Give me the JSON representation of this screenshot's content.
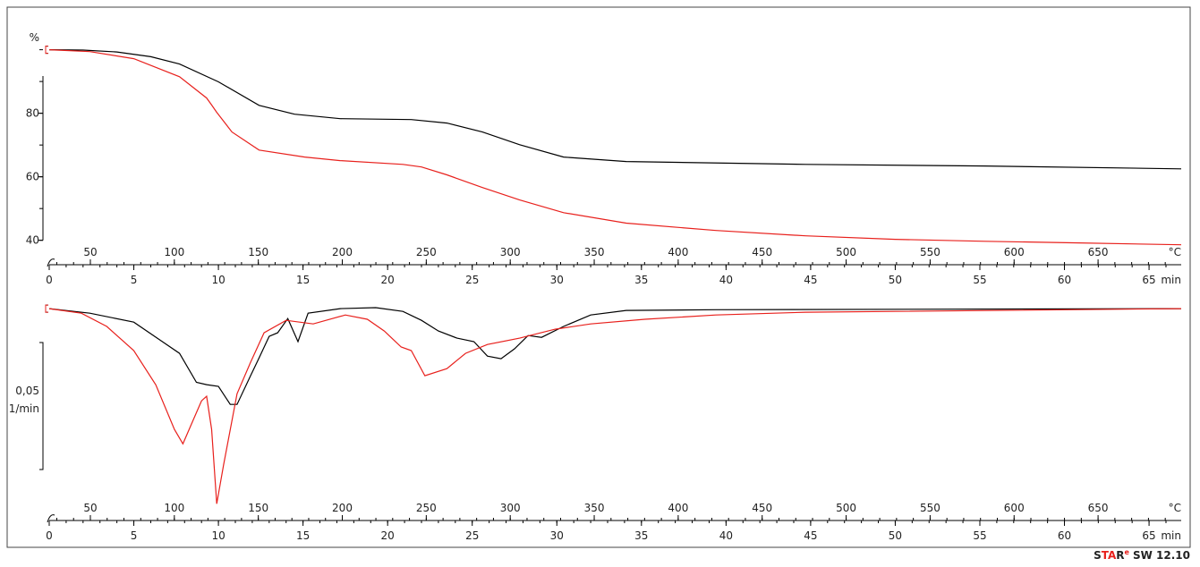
{
  "chart_data": [
    {
      "type": "line",
      "ylabel": "%",
      "xlabel": "min",
      "x2label": "°C",
      "xlim": [
        0,
        66.9
      ],
      "xticks": [
        0,
        5,
        10,
        15,
        20,
        25,
        30,
        35,
        40,
        45,
        50,
        55,
        60,
        65
      ],
      "x2lim": [
        25.5,
        699.5
      ],
      "x2ticks": [
        50,
        100,
        150,
        200,
        250,
        300,
        350,
        400,
        450,
        500,
        550,
        600,
        650
      ],
      "ylim": [
        34,
        112
      ],
      "yticks": [
        40,
        60,
        80
      ],
      "series": [
        {
          "color": "#000000",
          "x": [
            0,
            2,
            4,
            6,
            7.7,
            10,
            12.4,
            14.5,
            17.2,
            21.4,
            23.5,
            25.6,
            27.8,
            30.4,
            34.1,
            44.7,
            55.3,
            66.9
          ],
          "values": [
            100,
            99.9,
            99.3,
            97.8,
            95.5,
            89.9,
            82.5,
            79.7,
            78.3,
            78,
            76.9,
            74.1,
            70.1,
            66.2,
            64.8,
            63.9,
            63.4,
            62.5
          ]
        },
        {
          "color": "#e8201c",
          "x": [
            0,
            2.4,
            5,
            7.7,
            9.3,
            9.6,
            9.9,
            10.8,
            12.4,
            15.1,
            17.2,
            20.9,
            22,
            23.5,
            25.6,
            27.8,
            30.4,
            34.1,
            39.4,
            44.7,
            50,
            55.3,
            60.5,
            66.9
          ],
          "values": [
            100,
            99.4,
            97.2,
            91.5,
            84.8,
            82.6,
            80.3,
            74.1,
            68.4,
            66.2,
            65.1,
            63.9,
            63.1,
            60.6,
            56.6,
            52.7,
            48.7,
            45.4,
            43.1,
            41.4,
            40.3,
            39.7,
            39.2,
            38.6
          ]
        }
      ]
    },
    {
      "type": "line",
      "xlabel": "min",
      "x2label": "°C",
      "xlim": [
        0,
        66.9
      ],
      "xticks": [
        0,
        5,
        10,
        15,
        20,
        25,
        30,
        35,
        40,
        45,
        50,
        55,
        60,
        65
      ],
      "x2lim": [
        25.5,
        699.5
      ],
      "x2ticks": [
        50,
        100,
        150,
        200,
        250,
        300,
        350,
        400,
        450,
        500,
        550,
        600,
        650
      ],
      "ylim": [
        -0.0862,
        0.0018
      ],
      "ylabel": "1/min",
      "scale_bar": {
        "value": 0.05,
        "label": "0,05"
      },
      "series": [
        {
          "color": "#000000",
          "x": [
            0,
            2.4,
            5,
            7.7,
            8.7,
            9.3,
            10,
            10.7,
            11.1,
            11.9,
            12.4,
            13,
            13.5,
            14.1,
            14.7,
            15.3,
            17.2,
            19.3,
            20.9,
            22,
            23,
            24.1,
            25.1,
            25.9,
            26.7,
            27.5,
            28.3,
            29.1,
            30.4,
            32,
            34.1,
            39.4,
            66.9
          ],
          "values": [
            0,
            -0.0018,
            -0.0053,
            -0.0176,
            -0.029,
            -0.0299,
            -0.0306,
            -0.0377,
            -0.0377,
            -0.0264,
            -0.0194,
            -0.0109,
            -0.0095,
            -0.0039,
            -0.013,
            -0.0018,
            0,
            0.0004,
            -0.0011,
            -0.0046,
            -0.0088,
            -0.0116,
            -0.013,
            -0.0187,
            -0.0197,
            -0.0158,
            -0.0106,
            -0.0113,
            -0.007,
            -0.0025,
            -0.0007,
            -0.0004,
            0
          ]
        },
        {
          "color": "#e8201c",
          "x": [
            0,
            1.9,
            3.4,
            5,
            6.3,
            7.4,
            7.9,
            8.5,
            9,
            9.3,
            9.6,
            9.9,
            10.3,
            11.1,
            11.9,
            12.7,
            14,
            15.6,
            17.5,
            18.8,
            19.8,
            20.8,
            21.4,
            22.2,
            23.5,
            24.6,
            25.9,
            27.8,
            29.9,
            32,
            35.2,
            39.4,
            44.7,
            50,
            66.9
          ],
          "values": [
            0,
            -0.0018,
            -0.007,
            -0.0165,
            -0.03,
            -0.0475,
            -0.0532,
            -0.044,
            -0.0363,
            -0.0345,
            -0.0475,
            -0.0768,
            -0.0616,
            -0.0335,
            -0.0211,
            -0.0095,
            -0.0046,
            -0.006,
            -0.0025,
            -0.0042,
            -0.0088,
            -0.0151,
            -0.0165,
            -0.0264,
            -0.0236,
            -0.0176,
            -0.0141,
            -0.0116,
            -0.0081,
            -0.006,
            -0.0042,
            -0.0025,
            -0.0014,
            -0.0011,
            0
          ]
        }
      ]
    }
  ],
  "footer": {
    "brand_a": "S",
    "brand_b": "TA",
    "brand_c": "R",
    "brand_sup": "e",
    "version": "SW 12.10"
  }
}
